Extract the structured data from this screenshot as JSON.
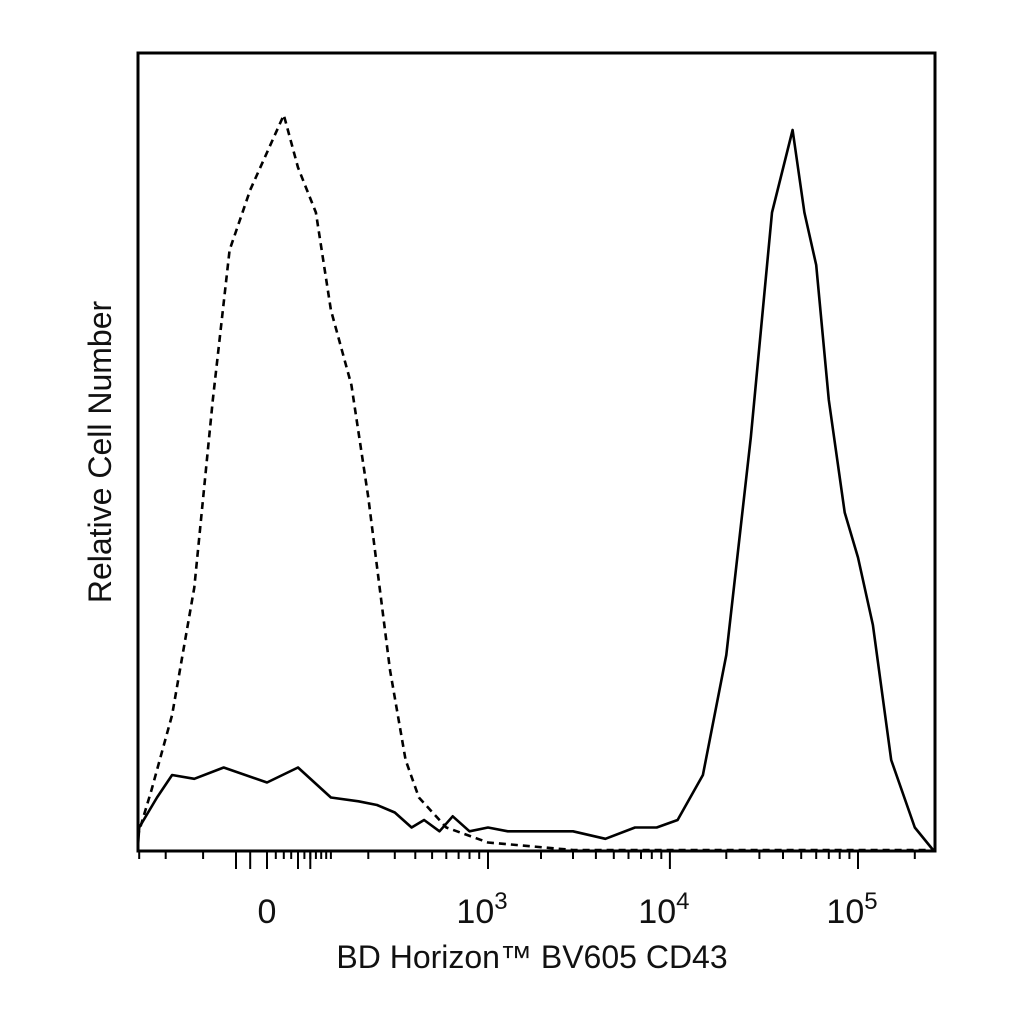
{
  "chart_data": {
    "type": "line",
    "title": "",
    "xlabel": "BD Horizon™ BV605 CD43",
    "ylabel": "Relative Cell Number",
    "x_scale": "biexponential",
    "xlim": [
      -1000,
      250000
    ],
    "ylim": [
      0,
      100
    ],
    "grid": false,
    "legend": "none",
    "x_tick_labels": [
      {
        "value": 0,
        "base": "0",
        "exp": ""
      },
      {
        "value": 1000,
        "base": "10",
        "exp": "3"
      },
      {
        "value": 10000,
        "base": "10",
        "exp": "4"
      },
      {
        "value": 100000,
        "base": "10",
        "exp": "5"
      }
    ],
    "series": [
      {
        "style": "dashed",
        "x": [
          -500,
          -350,
          -250,
          -180,
          -120,
          -80,
          -50,
          -20,
          0,
          20,
          40,
          70,
          100,
          150,
          200,
          280,
          350,
          420,
          600,
          1000,
          3000,
          10000,
          30000,
          100000,
          250000
        ],
        "y": [
          0,
          2,
          8,
          18,
          35,
          60,
          80,
          88,
          93,
          98,
          91,
          85,
          72,
          62,
          47,
          24,
          12,
          7,
          3,
          1,
          0,
          0,
          0,
          0,
          0
        ]
      },
      {
        "style": "solid",
        "x": [
          -500,
          -380,
          -300,
          -230,
          -180,
          -120,
          -60,
          0,
          40,
          100,
          170,
          230,
          300,
          380,
          450,
          550,
          650,
          800,
          1000,
          1300,
          2000,
          3000,
          4500,
          6500,
          8500,
          11000,
          15000,
          20000,
          27000,
          35000,
          45000,
          52000,
          60000,
          70000,
          85000,
          100000,
          120000,
          150000,
          200000,
          250000
        ],
        "y": [
          0,
          0.5,
          3,
          7,
          10,
          9.5,
          11,
          9,
          11,
          7,
          6.5,
          6,
          5,
          3,
          4,
          2.5,
          4.5,
          2.5,
          3,
          2.5,
          2.5,
          2.5,
          1.5,
          3,
          3,
          4,
          10,
          26,
          55,
          85,
          96,
          85,
          78,
          60,
          45,
          39,
          30,
          12,
          3,
          0
        ]
      }
    ]
  }
}
